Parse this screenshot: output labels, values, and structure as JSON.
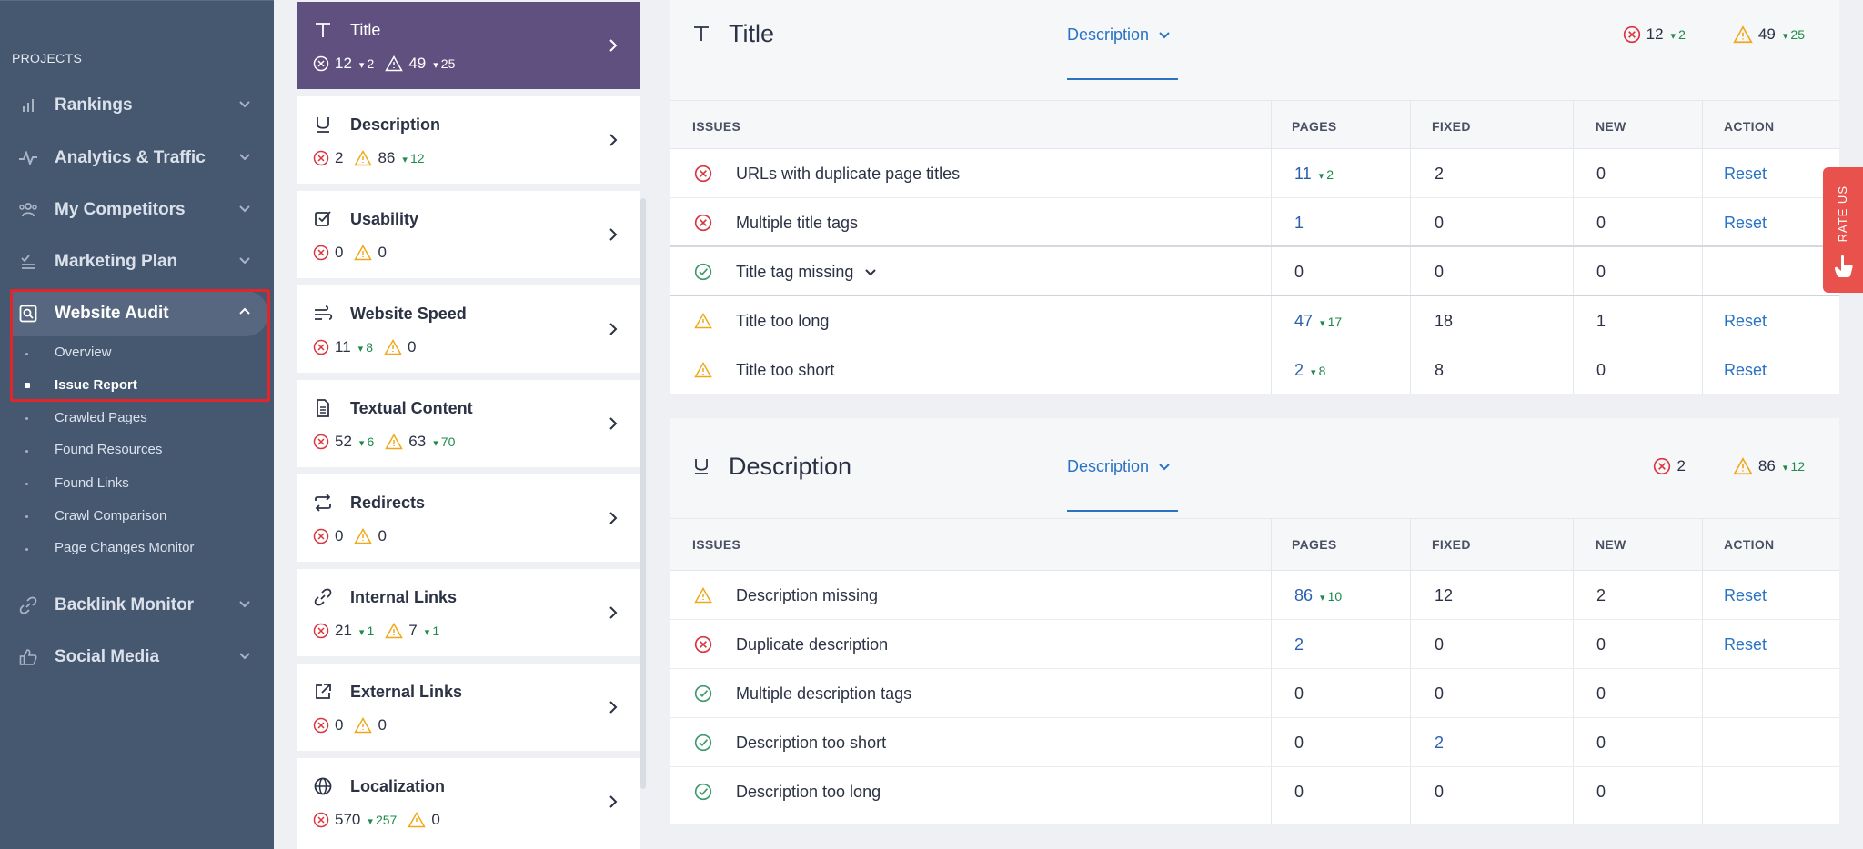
{
  "sidebar": {
    "projects_label": "PROJECTS",
    "items": [
      {
        "label": "Rankings",
        "icon": "bar-chart-icon"
      },
      {
        "label": "Analytics & Traffic",
        "icon": "pulse-icon"
      },
      {
        "label": "My Competitors",
        "icon": "users-icon"
      },
      {
        "label": "Marketing Plan",
        "icon": "checklist-icon"
      },
      {
        "label": "Website Audit",
        "icon": "audit-search-icon"
      },
      {
        "label": "Backlink Monitor",
        "icon": "link-icon"
      },
      {
        "label": "Social Media",
        "icon": "thumbs-up-icon"
      }
    ],
    "sub_items": [
      {
        "label": "Overview"
      },
      {
        "label": "Issue Report"
      },
      {
        "label": "Crawled Pages"
      },
      {
        "label": "Found Resources"
      },
      {
        "label": "Found Links"
      },
      {
        "label": "Crawl Comparison"
      },
      {
        "label": "Page Changes Monitor"
      }
    ]
  },
  "categories": [
    {
      "name": "Title",
      "errors": "12",
      "errors_delta": "2",
      "warnings": "49",
      "warnings_delta": "25"
    },
    {
      "name": "Description",
      "errors": "2",
      "warnings": "86",
      "warnings_delta": "12"
    },
    {
      "name": "Usability",
      "errors": "0",
      "warnings": "0"
    },
    {
      "name": "Website Speed",
      "errors": "11",
      "errors_delta": "8",
      "warnings": "0"
    },
    {
      "name": "Textual Content",
      "errors": "52",
      "errors_delta": "6",
      "warnings": "63",
      "warnings_delta": "70"
    },
    {
      "name": "Redirects",
      "errors": "0",
      "warnings": "0"
    },
    {
      "name": "Internal Links",
      "errors": "21",
      "errors_delta": "1",
      "warnings": "7",
      "warnings_delta": "1"
    },
    {
      "name": "External Links",
      "errors": "0",
      "warnings": "0"
    },
    {
      "name": "Localization",
      "errors": "570",
      "errors_delta": "257",
      "warnings": "0"
    }
  ],
  "table_headers": {
    "issues": "ISSUES",
    "pages": "PAGES",
    "fixed": "FIXED",
    "new": "NEW",
    "action": "ACTION"
  },
  "panels": [
    {
      "title": "Title",
      "dropdown": "Description",
      "errors": "12",
      "errors_delta": "2",
      "warnings": "49",
      "warnings_delta": "25",
      "rows": [
        {
          "status": "error",
          "name": "URLs with duplicate page titles",
          "pages": "11",
          "pages_delta": "2",
          "fixed": "2",
          "new": "0",
          "action": "Reset"
        },
        {
          "status": "error",
          "name": "Multiple title tags",
          "pages": "1",
          "fixed": "0",
          "new": "0",
          "action": "Reset"
        },
        {
          "status": "ok",
          "name": "Title tag missing",
          "pages": "0",
          "fixed": "0",
          "new": "0",
          "action": ""
        },
        {
          "status": "warning",
          "name": "Title too long",
          "pages": "47",
          "pages_delta": "17",
          "fixed": "18",
          "new": "1",
          "action": "Reset"
        },
        {
          "status": "warning",
          "name": "Title too short",
          "pages": "2",
          "pages_delta": "8",
          "fixed": "8",
          "new": "0",
          "action": "Reset"
        }
      ]
    },
    {
      "title": "Description",
      "dropdown": "Description",
      "errors": "2",
      "warnings": "86",
      "warnings_delta": "12",
      "rows": [
        {
          "status": "warning",
          "name": "Description missing",
          "pages": "86",
          "pages_delta": "10",
          "fixed": "12",
          "new": "2",
          "action": "Reset"
        },
        {
          "status": "error",
          "name": "Duplicate description",
          "pages": "2",
          "fixed": "0",
          "new": "0",
          "action": "Reset"
        },
        {
          "status": "ok",
          "name": "Multiple description tags",
          "pages": "0",
          "fixed": "0",
          "new": "0",
          "action": ""
        },
        {
          "status": "ok",
          "name": "Description too short",
          "pages": "0",
          "fixed": "2",
          "new": "0",
          "action": ""
        },
        {
          "status": "ok",
          "name": "Description too long",
          "pages": "0",
          "fixed": "0",
          "new": "0",
          "action": ""
        }
      ]
    }
  ],
  "rate_us": "RATE US",
  "colors": {
    "sidebar": "#465770",
    "active_category": "#5f5080",
    "error": "#d9363e",
    "warning": "#f0a818",
    "ok": "#3f9a6e",
    "link": "#2a73c3",
    "rate_us": "#e9514d"
  }
}
